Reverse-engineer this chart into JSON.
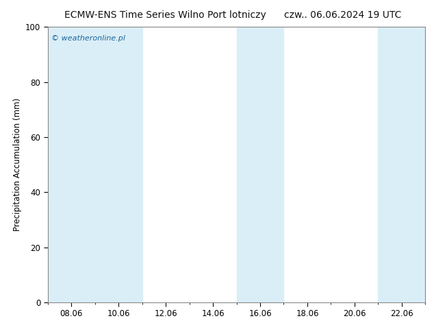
{
  "title_left": "ECMW-ENS Time Series Wilno Port lotniczy",
  "title_right": "czw.. 06.06.2024 19 UTC",
  "ylabel": "Precipitation Accumulation (mm)",
  "ylim": [
    0,
    100
  ],
  "yticks": [
    0,
    20,
    40,
    60,
    80,
    100
  ],
  "xtick_labels": [
    "08.06",
    "10.06",
    "12.06",
    "14.06",
    "16.06",
    "18.06",
    "20.06",
    "22.06"
  ],
  "xtick_days_offset": [
    1,
    3,
    5,
    7,
    9,
    11,
    13,
    15
  ],
  "xlim": [
    0,
    16
  ],
  "shade_bands": [
    [
      0,
      2
    ],
    [
      2,
      4
    ],
    [
      8,
      10
    ],
    [
      14,
      16
    ]
  ],
  "shade_color": "#daeef7",
  "background_color": "#ffffff",
  "plot_bg_color": "#ffffff",
  "watermark": "© weatheronline.pl",
  "watermark_color": "#1a6699",
  "title_fontsize": 10,
  "axis_label_fontsize": 8.5,
  "tick_fontsize": 8.5,
  "border_color": "#888888"
}
